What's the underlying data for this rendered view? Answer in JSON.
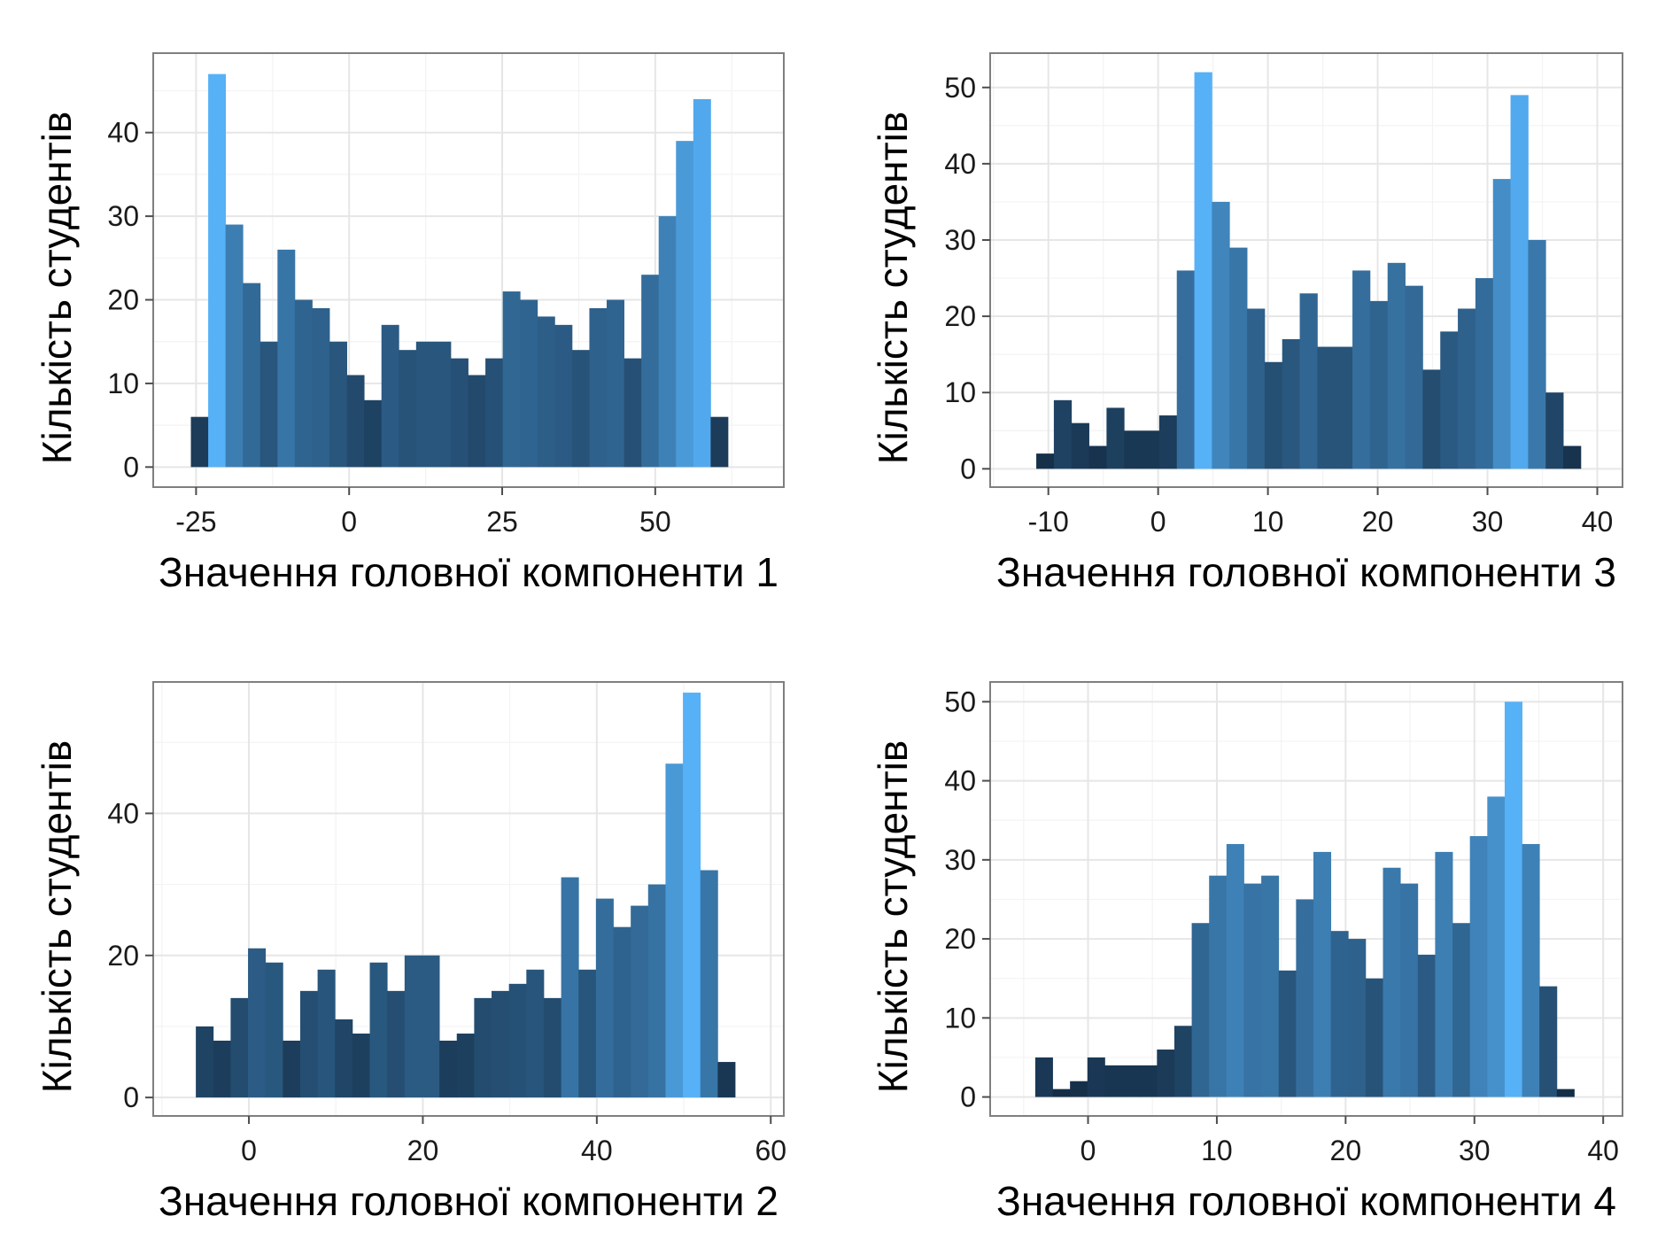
{
  "chart_data": [
    {
      "type": "bar",
      "panel": "top-left",
      "xlabel": "Значення головної компоненти 1",
      "ylabel": "Кількість студентів",
      "xlim": [
        -32,
        71
      ],
      "ylim": [
        -2.4,
        49.5
      ],
      "x_ticks": [
        -25,
        0,
        25,
        50
      ],
      "x_tick_labels": [
        "-25",
        "0",
        "25",
        "50"
      ],
      "y_ticks": [
        0,
        10,
        20,
        30,
        40
      ],
      "y_tick_labels": [
        "0",
        "10",
        "20",
        "30",
        "40"
      ],
      "bin_width": 2.83,
      "bin_start": -25.85,
      "values": [
        6,
        47,
        29,
        22,
        15,
        26,
        20,
        19,
        15,
        11,
        8,
        17,
        14,
        15,
        15,
        13,
        11,
        13,
        21,
        20,
        18,
        17,
        14,
        19,
        20,
        13,
        23,
        30,
        39,
        44,
        6
      ]
    },
    {
      "type": "bar",
      "panel": "top-right",
      "xlabel": "Значення головної компоненти 3",
      "ylabel": "Кількість студентів",
      "xlim": [
        -15.3,
        42.3
      ],
      "ylim": [
        -2.4,
        54.5
      ],
      "x_ticks": [
        -10,
        0,
        10,
        20,
        30,
        40
      ],
      "x_tick_labels": [
        "-10",
        "0",
        "10",
        "20",
        "30",
        "40"
      ],
      "y_ticks": [
        0,
        10,
        20,
        30,
        40,
        50
      ],
      "y_tick_labels": [
        "0",
        "10",
        "20",
        "30",
        "40",
        "50"
      ],
      "bin_width": 1.6,
      "bin_start": -11.1,
      "values": [
        2,
        9,
        6,
        3,
        8,
        5,
        5,
        7,
        26,
        52,
        35,
        29,
        21,
        14,
        17,
        23,
        16,
        16,
        26,
        22,
        27,
        24,
        13,
        18,
        21,
        25,
        38,
        49,
        30,
        10,
        3
      ]
    },
    {
      "type": "bar",
      "panel": "bottom-left",
      "xlabel": "Значення головної компоненти 2",
      "ylabel": "Кількість студентів",
      "xlim": [
        -11,
        61.5
      ],
      "ylim": [
        -2.6,
        58.5
      ],
      "x_ticks": [
        0,
        20,
        40,
        60
      ],
      "x_tick_labels": [
        "0",
        "20",
        "40",
        "60"
      ],
      "y_ticks": [
        0,
        20,
        40
      ],
      "y_tick_labels": [
        "0",
        "20",
        "40"
      ],
      "bin_width": 2.0,
      "bin_start": -6.1,
      "values": [
        10,
        8,
        14,
        21,
        19,
        8,
        15,
        18,
        11,
        9,
        19,
        15,
        20,
        20,
        8,
        9,
        14,
        15,
        16,
        18,
        14,
        31,
        18,
        28,
        24,
        27,
        30,
        47,
        57,
        32,
        5
      ]
    },
    {
      "type": "bar",
      "panel": "bottom-right",
      "xlabel": "Значення головної компоненти 4",
      "ylabel": "Кількість студентів",
      "xlim": [
        -7.6,
        41.5
      ],
      "ylim": [
        -2.4,
        52.5
      ],
      "x_ticks": [
        0,
        10,
        20,
        30,
        40
      ],
      "x_tick_labels": [
        "0",
        "10",
        "20",
        "30",
        "40"
      ],
      "y_ticks": [
        0,
        10,
        20,
        30,
        40,
        50
      ],
      "y_tick_labels": [
        "0",
        "10",
        "20",
        "30",
        "40",
        "50"
      ],
      "bin_width": 1.35,
      "bin_start": -4.1,
      "values": [
        5,
        1,
        2,
        5,
        4,
        4,
        4,
        6,
        9,
        22,
        28,
        32,
        27,
        28,
        16,
        25,
        31,
        21,
        20,
        15,
        29,
        27,
        18,
        31,
        22,
        33,
        38,
        50,
        32,
        14,
        1
      ]
    }
  ],
  "colors": {
    "fill_low": "#132B43",
    "fill_high": "#56B1F7",
    "panel_frame": "#7F7F7F",
    "grid": "#E6E6E6"
  }
}
